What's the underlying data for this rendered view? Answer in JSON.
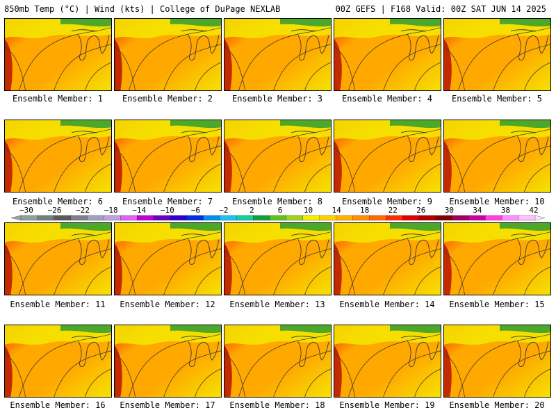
{
  "header": {
    "left": "850mb Temp (°C) | Wind (kts) | College of DuPage NEXLAB",
    "right": "00Z GEFS | F168 Valid: 00Z SAT JUN 14 2025"
  },
  "panels": [
    {
      "label": "Ensemble Member: 1"
    },
    {
      "label": "Ensemble Member: 2"
    },
    {
      "label": "Ensemble Member: 3"
    },
    {
      "label": "Ensemble Member: 4"
    },
    {
      "label": "Ensemble Member: 5"
    },
    {
      "label": "Ensemble Member: 6"
    },
    {
      "label": "Ensemble Member: 7"
    },
    {
      "label": "Ensemble Member: 8"
    },
    {
      "label": "Ensemble Member: 9"
    },
    {
      "label": "Ensemble Member: 10"
    },
    {
      "label": "Ensemble Member: 11"
    },
    {
      "label": "Ensemble Member: 12"
    },
    {
      "label": "Ensemble Member: 13"
    },
    {
      "label": "Ensemble Member: 14"
    },
    {
      "label": "Ensemble Member: 15"
    },
    {
      "label": "Ensemble Member: 16"
    },
    {
      "label": "Ensemble Member: 17"
    },
    {
      "label": "Ensemble Member: 18"
    },
    {
      "label": "Ensemble Member: 19"
    },
    {
      "label": "Ensemble Member: 20"
    }
  ],
  "colorbar": {
    "labels": [
      "−30",
      "−26",
      "−22",
      "−18",
      "−14",
      "−10",
      "−6",
      "−2",
      "2",
      "6",
      "10",
      "14",
      "18",
      "22",
      "26",
      "30",
      "34",
      "38",
      "42"
    ],
    "colors": [
      "#8f9f9f",
      "#6f7f7f",
      "#5a5a5a",
      "#7f7f8f",
      "#9f9fbf",
      "#c0a0e0",
      "#e060f0",
      "#c000d0",
      "#7000c0",
      "#3000d0",
      "#0030e0",
      "#0090f0",
      "#20c0f0",
      "#10d0a0",
      "#10a040",
      "#60c020",
      "#a0d020",
      "#f0f000",
      "#ffd000",
      "#ffb000",
      "#ff9000",
      "#ff6a00",
      "#ff3000",
      "#e00000",
      "#b00000",
      "#800000",
      "#a00060",
      "#d000a0",
      "#ff40e0",
      "#ff90ff",
      "#ffc0ff"
    ]
  },
  "colors": {
    "cool": "#2f9e2f",
    "mild": "#f5e400",
    "warm": "#ffa800",
    "hot": "#f03000",
    "hotter": "#b00000"
  }
}
